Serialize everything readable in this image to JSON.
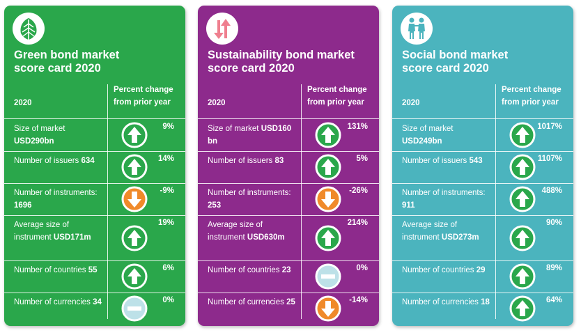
{
  "header_year": "2020",
  "header_change_line1": "Percent change",
  "header_change_line2": "from prior year",
  "colors": {
    "green_card": "#2aa74b",
    "purple_card": "#8d2a8c",
    "teal_card": "#4bb4be",
    "arrow_up": "#2aa74b",
    "arrow_down": "#f08a2a",
    "arrow_flat": "#bde1e8"
  },
  "cards": [
    {
      "id": "green",
      "icon": "leaf-icon",
      "title_line1": "Green bond market",
      "title_line2": "score card 2020",
      "rows": [
        {
          "label_prefix": "Size of market",
          "value": "USD290bn",
          "change": "9%",
          "direction": "up"
        },
        {
          "label_prefix": "Number of issuers",
          "value": "634",
          "change": "14%",
          "direction": "up"
        },
        {
          "label_prefix": "Number of instruments:",
          "value": "1696",
          "change": "-9%",
          "direction": "down"
        },
        {
          "label_prefix": "Average size of instrument",
          "value": "USD171m",
          "change": "19%",
          "direction": "up"
        },
        {
          "label_prefix": "Number of countries",
          "value": "55",
          "change": "6%",
          "direction": "up"
        },
        {
          "label_prefix": "Number of currencies",
          "value": "34",
          "change": "0%",
          "direction": "flat"
        }
      ]
    },
    {
      "id": "purple",
      "icon": "up-down-arrows-icon",
      "title_line1": "Sustainability bond market",
      "title_line2": "score card 2020",
      "rows": [
        {
          "label_prefix": "Size of market",
          "value": "USD160 bn",
          "change": "131%",
          "direction": "up"
        },
        {
          "label_prefix": "Number of issuers",
          "value": "83",
          "change": "5%",
          "direction": "up"
        },
        {
          "label_prefix": "Number of instruments:",
          "value": "253",
          "change": "-26%",
          "direction": "down"
        },
        {
          "label_prefix": "Average size of instrument",
          "value": "USD630m",
          "change": "214%",
          "direction": "up"
        },
        {
          "label_prefix": "Number of countries",
          "value": "23",
          "change": "0%",
          "direction": "flat"
        },
        {
          "label_prefix": "Number of currencies",
          "value": "25",
          "change": "-14%",
          "direction": "down"
        }
      ]
    },
    {
      "id": "teal",
      "icon": "people-icon",
      "title_line1": "Social bond market",
      "title_line2": "score card 2020",
      "rows": [
        {
          "label_prefix": "Size of market",
          "value": "USD249bn",
          "change": "1017%",
          "direction": "up"
        },
        {
          "label_prefix": "Number of issuers",
          "value": "543",
          "change": "1107%",
          "direction": "up"
        },
        {
          "label_prefix": "Number of instruments:",
          "value": "911",
          "change": "488%",
          "direction": "up"
        },
        {
          "label_prefix": "Average size of instrument",
          "value": "USD273m",
          "change": "90%",
          "direction": "up"
        },
        {
          "label_prefix": "Number of countries",
          "value": "29",
          "change": "89%",
          "direction": "up"
        },
        {
          "label_prefix": "Number of currencies",
          "value": "18",
          "change": "64%",
          "direction": "up"
        }
      ]
    }
  ]
}
